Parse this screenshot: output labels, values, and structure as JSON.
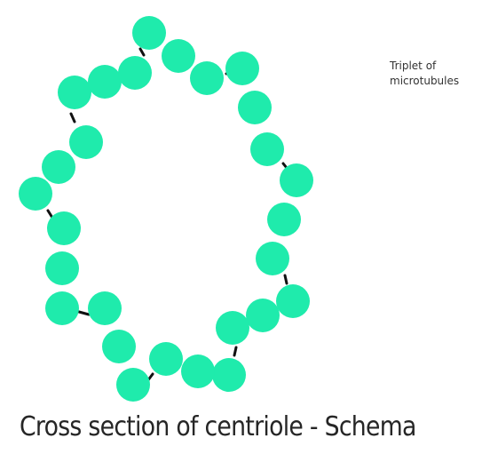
{
  "diagram": {
    "subject": "centriole cross section",
    "triplet_count": 9,
    "microtubules_per_triplet": 3,
    "colors": {
      "microtubule": "#1FEBAC",
      "link": "#111111",
      "background": "#FFFFFF"
    }
  },
  "annotation": {
    "line1": "Triplet of",
    "line2": "microtubules"
  },
  "caption": "Cross section of centriole - Schema"
}
